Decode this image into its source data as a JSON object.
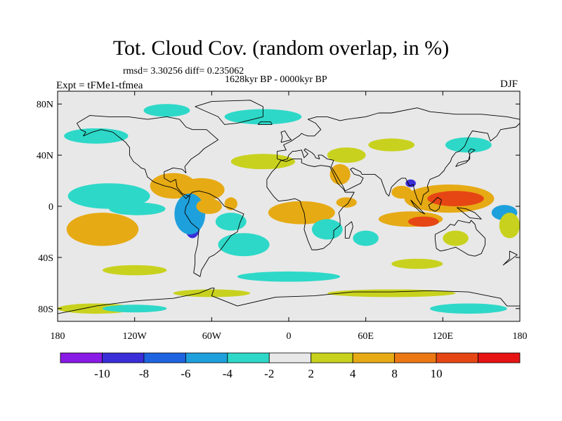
{
  "title": "Tot. Cloud Cov. (random overlap, in %)",
  "stats_text": "rmsd= 3.30256 diff= 0.235062",
  "period_text": "1628kyr BP - 0000kyr BP",
  "experiment_text": "Expt = tFMe1-tfmea",
  "season_text": "DJF",
  "lat_labels": [
    {
      "text": "80N",
      "lat": 80
    },
    {
      "text": "40N",
      "lat": 40
    },
    {
      "text": "0",
      "lat": 0
    },
    {
      "text": "40S",
      "lat": -40
    },
    {
      "text": "80S",
      "lat": -80
    }
  ],
  "lon_labels": [
    {
      "text": "180",
      "lon": -180
    },
    {
      "text": "120W",
      "lon": -120
    },
    {
      "text": "60W",
      "lon": -60
    },
    {
      "text": "0",
      "lon": 0
    },
    {
      "text": "60E",
      "lon": 60
    },
    {
      "text": "120E",
      "lon": 120
    },
    {
      "text": "180",
      "lon": 180
    }
  ],
  "colorbar": {
    "colors": [
      "#8a1ae6",
      "#3a2ed8",
      "#1e64e0",
      "#1ea0dc",
      "#2ed8c8",
      "#e8e8e8",
      "#c8d21e",
      "#e6aa14",
      "#ec7814",
      "#e64614",
      "#e61414"
    ],
    "labels": [
      {
        "text": "-10",
        "boundary": 1
      },
      {
        "text": "-8",
        "boundary": 2
      },
      {
        "text": "-6",
        "boundary": 3
      },
      {
        "text": "-4",
        "boundary": 4
      },
      {
        "text": "-2",
        "boundary": 5
      },
      {
        "text": "2",
        "boundary": 6
      },
      {
        "text": "4",
        "boundary": 7
      },
      {
        "text": "8",
        "boundary": 8
      },
      {
        "text": "10",
        "boundary": 9
      }
    ]
  },
  "anomaly_regions": [
    {
      "lon": -140,
      "lat": 8,
      "rlon": 22,
      "rlat": 7,
      "color": "#1e64e0"
    },
    {
      "lon": -140,
      "lat": 8,
      "rlon": 32,
      "rlat": 10,
      "color": "#2ed8c8"
    },
    {
      "lon": -150,
      "lat": -20,
      "rlon": 14,
      "rlat": 9,
      "color": "#e64614"
    },
    {
      "lon": -145,
      "lat": -18,
      "rlon": 28,
      "rlat": 13,
      "color": "#e6aa14"
    },
    {
      "lon": -90,
      "lat": 16,
      "rlon": 18,
      "rlat": 10,
      "color": "#e6aa14"
    },
    {
      "lon": -68,
      "lat": 13,
      "rlon": 18,
      "rlat": 9,
      "color": "#e6aa14"
    },
    {
      "lon": -75,
      "lat": -2,
      "rlon": 8,
      "rlat": 5,
      "color": "#3a2ed8"
    },
    {
      "lon": -75,
      "lat": -15,
      "rlon": 6,
      "rlat": 10,
      "color": "#3a2ed8"
    },
    {
      "lon": -77,
      "lat": -6,
      "rlon": 12,
      "rlat": 16,
      "color": "#1ea0dc"
    },
    {
      "lon": -118,
      "lat": -2,
      "rlon": 22,
      "rlat": 5,
      "color": "#2ed8c8"
    },
    {
      "lon": -62,
      "lat": 0,
      "rlon": 10,
      "rlat": 6,
      "color": "#e6aa14"
    },
    {
      "lon": -45,
      "lat": 2,
      "rlon": 5,
      "rlat": 5,
      "color": "#e6aa14"
    },
    {
      "lon": -40,
      "lat": -30,
      "rlon": 12,
      "rlat": 6,
      "color": "#1ea0dc"
    },
    {
      "lon": -35,
      "lat": -30,
      "rlon": 20,
      "rlat": 9,
      "color": "#2ed8c8"
    },
    {
      "lon": -45,
      "lat": -12,
      "rlon": 12,
      "rlat": 7,
      "color": "#2ed8c8"
    },
    {
      "lon": -20,
      "lat": 35,
      "rlon": 25,
      "rlat": 6,
      "color": "#c8d21e"
    },
    {
      "lon": 10,
      "lat": -5,
      "rlon": 16,
      "rlat": 5,
      "color": "#e64614"
    },
    {
      "lon": 10,
      "lat": -5,
      "rlon": 26,
      "rlat": 9,
      "color": "#e6aa14"
    },
    {
      "lon": 40,
      "lat": 25,
      "rlon": 8,
      "rlat": 8,
      "color": "#e6aa14"
    },
    {
      "lon": 45,
      "lat": 40,
      "rlon": 15,
      "rlat": 6,
      "color": "#c8d21e"
    },
    {
      "lon": 30,
      "lat": -18,
      "rlon": 12,
      "rlat": 8,
      "color": "#2ed8c8"
    },
    {
      "lon": 60,
      "lat": -25,
      "rlon": 10,
      "rlat": 6,
      "color": "#2ed8c8"
    },
    {
      "lon": 45,
      "lat": 3,
      "rlon": 8,
      "rlat": 4,
      "color": "#e6aa14"
    },
    {
      "lon": 88,
      "lat": 11,
      "rlon": 8,
      "rlat": 5,
      "color": "#e6aa14"
    },
    {
      "lon": 125,
      "lat": 6,
      "rlon": 35,
      "rlat": 11,
      "color": "#e6aa14"
    },
    {
      "lon": 130,
      "lat": 6,
      "rlon": 22,
      "rlat": 6,
      "color": "#e64614"
    },
    {
      "lon": 95,
      "lat": -10,
      "rlon": 25,
      "rlat": 6,
      "color": "#e6aa14"
    },
    {
      "lon": 105,
      "lat": -12,
      "rlon": 12,
      "rlat": 4,
      "color": "#e64614"
    },
    {
      "lon": 95,
      "lat": 18,
      "rlon": 4,
      "rlat": 3,
      "color": "#3a2ed8"
    },
    {
      "lon": 130,
      "lat": -25,
      "rlon": 10,
      "rlat": 6,
      "color": "#c8d21e"
    },
    {
      "lon": 168,
      "lat": -5,
      "rlon": 10,
      "rlat": 6,
      "color": "#1ea0dc"
    },
    {
      "lon": 172,
      "lat": -15,
      "rlon": 8,
      "rlat": 10,
      "color": "#c8d21e"
    },
    {
      "lon": 140,
      "lat": 48,
      "rlon": 18,
      "rlat": 6,
      "color": "#2ed8c8"
    },
    {
      "lon": 80,
      "lat": 48,
      "rlon": 18,
      "rlat": 5,
      "color": "#c8d21e"
    },
    {
      "lon": -150,
      "lat": 55,
      "rlon": 25,
      "rlat": 6,
      "color": "#2ed8c8"
    },
    {
      "lon": -20,
      "lat": 70,
      "rlon": 30,
      "rlat": 6,
      "color": "#2ed8c8"
    },
    {
      "lon": -95,
      "lat": 75,
      "rlon": 18,
      "rlat": 5,
      "color": "#2ed8c8"
    },
    {
      "lon": -120,
      "lat": -50,
      "rlon": 25,
      "rlat": 4,
      "color": "#c8d21e"
    },
    {
      "lon": 100,
      "lat": -45,
      "rlon": 20,
      "rlat": 4,
      "color": "#c8d21e"
    },
    {
      "lon": 0,
      "lat": -55,
      "rlon": 40,
      "rlat": 4,
      "color": "#2ed8c8"
    },
    {
      "lon": -60,
      "lat": -68,
      "rlon": 30,
      "rlat": 3,
      "color": "#c8d21e"
    },
    {
      "lon": 80,
      "lat": -68,
      "rlon": 50,
      "rlat": 3,
      "color": "#c8d21e"
    },
    {
      "lon": -150,
      "lat": -80,
      "rlon": 30,
      "rlat": 4,
      "color": "#c8d21e"
    },
    {
      "lon": 140,
      "lat": -80,
      "rlon": 30,
      "rlat": 4,
      "color": "#2ed8c8"
    },
    {
      "lon": -120,
      "lat": -80,
      "rlon": 25,
      "rlat": 3,
      "color": "#2ed8c8"
    }
  ],
  "coastlines": [
    [
      [
        -165,
        65
      ],
      [
        -155,
        71
      ],
      [
        -140,
        70
      ],
      [
        -125,
        70
      ],
      [
        -110,
        68
      ],
      [
        -95,
        70
      ],
      [
        -85,
        68
      ],
      [
        -80,
        62
      ],
      [
        -75,
        60
      ],
      [
        -64,
        60
      ],
      [
        -55,
        52
      ],
      [
        -66,
        45
      ],
      [
        -70,
        41
      ],
      [
        -76,
        37
      ],
      [
        -81,
        31
      ],
      [
        -80,
        26
      ],
      [
        -83,
        29
      ],
      [
        -90,
        30
      ],
      [
        -97,
        27
      ],
      [
        -97,
        22
      ],
      [
        -92,
        19
      ],
      [
        -88,
        21
      ],
      [
        -87,
        15
      ],
      [
        -83,
        10
      ],
      [
        -78,
        8
      ],
      [
        -80,
        6
      ],
      [
        -87,
        13
      ],
      [
        -92,
        15
      ],
      [
        -97,
        16
      ],
      [
        -105,
        19
      ],
      [
        -110,
        23
      ],
      [
        -112,
        29
      ],
      [
        -115,
        30
      ],
      [
        -117,
        32
      ],
      [
        -121,
        35
      ],
      [
        -124,
        40
      ],
      [
        -124,
        46
      ],
      [
        -127,
        50
      ],
      [
        -132,
        54
      ],
      [
        -137,
        58
      ],
      [
        -146,
        60
      ],
      [
        -153,
        58
      ],
      [
        -160,
        55
      ],
      [
        -158,
        58
      ],
      [
        -162,
        60
      ],
      [
        -165,
        65
      ]
    ],
    [
      [
        -78,
        8
      ],
      [
        -75,
        11
      ],
      [
        -70,
        12
      ],
      [
        -62,
        10
      ],
      [
        -55,
        6
      ],
      [
        -50,
        0
      ],
      [
        -44,
        -2
      ],
      [
        -35,
        -6
      ],
      [
        -38,
        -13
      ],
      [
        -40,
        -20
      ],
      [
        -45,
        -23
      ],
      [
        -48,
        -27
      ],
      [
        -53,
        -34
      ],
      [
        -58,
        -38
      ],
      [
        -62,
        -40
      ],
      [
        -65,
        -45
      ],
      [
        -68,
        -50
      ],
      [
        -69,
        -55
      ],
      [
        -74,
        -52
      ],
      [
        -73,
        -45
      ],
      [
        -73,
        -38
      ],
      [
        -71,
        -30
      ],
      [
        -70,
        -18
      ],
      [
        -76,
        -13
      ],
      [
        -81,
        -5
      ],
      [
        -80,
        0
      ],
      [
        -78,
        3
      ],
      [
        -77,
        8
      ],
      [
        -78,
        8
      ]
    ],
    [
      [
        -73,
        78
      ],
      [
        -60,
        82
      ],
      [
        -30,
        83
      ],
      [
        -20,
        78
      ],
      [
        -20,
        70
      ],
      [
        -40,
        65
      ],
      [
        -50,
        64
      ],
      [
        -55,
        70
      ],
      [
        -73,
        78
      ]
    ],
    [
      [
        -9,
        37
      ],
      [
        -9,
        43
      ],
      [
        -2,
        44
      ],
      [
        -4,
        48
      ],
      [
        2,
        51
      ],
      [
        5,
        53
      ],
      [
        8,
        55
      ],
      [
        10,
        57
      ],
      [
        12,
        56
      ],
      [
        15,
        55
      ],
      [
        20,
        55
      ],
      [
        25,
        60
      ],
      [
        21,
        65
      ],
      [
        15,
        68
      ],
      [
        22,
        70
      ],
      [
        30,
        70
      ],
      [
        40,
        67
      ],
      [
        45,
        68
      ],
      [
        60,
        70
      ],
      [
        70,
        73
      ],
      [
        80,
        73
      ],
      [
        100,
        77
      ],
      [
        110,
        74
      ],
      [
        130,
        72
      ],
      [
        150,
        72
      ],
      [
        170,
        70
      ],
      [
        180,
        68
      ],
      [
        180,
        65
      ],
      [
        177,
        62
      ],
      [
        165,
        60
      ],
      [
        162,
        55
      ],
      [
        157,
        51
      ],
      [
        155,
        57
      ],
      [
        143,
        59
      ],
      [
        140,
        54
      ],
      [
        137,
        47
      ],
      [
        133,
        43
      ],
      [
        130,
        42
      ],
      [
        127,
        38
      ],
      [
        126,
        35
      ],
      [
        122,
        30
      ],
      [
        121,
        28
      ],
      [
        117,
        24
      ],
      [
        110,
        21
      ],
      [
        108,
        16
      ],
      [
        109,
        12
      ],
      [
        105,
        9
      ],
      [
        103,
        1
      ],
      [
        100,
        6
      ],
      [
        98,
        12
      ],
      [
        97,
        17
      ],
      [
        94,
        16
      ],
      [
        91,
        22
      ],
      [
        88,
        22
      ],
      [
        85,
        20
      ],
      [
        80,
        15
      ],
      [
        78,
        8
      ],
      [
        76,
        10
      ],
      [
        73,
        18
      ],
      [
        72,
        21
      ],
      [
        67,
        25
      ],
      [
        62,
        25
      ],
      [
        57,
        25
      ],
      [
        56,
        27
      ],
      [
        50,
        30
      ],
      [
        48,
        29
      ],
      [
        51,
        25
      ],
      [
        55,
        24
      ],
      [
        58,
        22
      ],
      [
        56,
        18
      ],
      [
        52,
        16
      ],
      [
        44,
        12
      ],
      [
        42,
        16
      ],
      [
        39,
        21
      ],
      [
        35,
        28
      ],
      [
        33,
        31
      ],
      [
        35,
        36
      ],
      [
        30,
        37
      ],
      [
        26,
        40
      ],
      [
        23,
        40
      ],
      [
        24,
        37
      ],
      [
        21,
        38
      ],
      [
        20,
        40
      ],
      [
        18,
        42
      ],
      [
        13,
        45
      ],
      [
        12,
        44
      ],
      [
        15,
        41
      ],
      [
        12,
        38
      ],
      [
        10,
        44
      ],
      [
        5,
        43
      ],
      [
        3,
        43
      ],
      [
        0,
        40
      ],
      [
        -1,
        37
      ],
      [
        -5,
        36
      ],
      [
        -9,
        37
      ]
    ],
    [
      [
        -17,
        21
      ],
      [
        -17,
        15
      ],
      [
        -12,
        8
      ],
      [
        -8,
        4
      ],
      [
        0,
        5
      ],
      [
        5,
        6
      ],
      [
        9,
        4
      ],
      [
        10,
        0
      ],
      [
        12,
        -5
      ],
      [
        13,
        -12
      ],
      [
        12,
        -18
      ],
      [
        15,
        -27
      ],
      [
        18,
        -34
      ],
      [
        22,
        -34
      ],
      [
        27,
        -33
      ],
      [
        32,
        -29
      ],
      [
        35,
        -24
      ],
      [
        35,
        -19
      ],
      [
        40,
        -15
      ],
      [
        40,
        -10
      ],
      [
        39,
        -5
      ],
      [
        42,
        -1
      ],
      [
        46,
        2
      ],
      [
        51,
        11
      ],
      [
        44,
        11
      ],
      [
        43,
        13
      ],
      [
        38,
        18
      ],
      [
        34,
        27
      ],
      [
        32,
        31
      ],
      [
        25,
        32
      ],
      [
        20,
        31
      ],
      [
        15,
        32
      ],
      [
        10,
        34
      ],
      [
        10,
        37
      ],
      [
        3,
        37
      ],
      [
        -2,
        35
      ],
      [
        -6,
        36
      ],
      [
        -10,
        30
      ],
      [
        -13,
        27
      ],
      [
        -17,
        21
      ]
    ],
    [
      [
        114,
        -22
      ],
      [
        114,
        -26
      ],
      [
        115,
        -33
      ],
      [
        118,
        -35
      ],
      [
        123,
        -34
      ],
      [
        130,
        -32
      ],
      [
        135,
        -35
      ],
      [
        140,
        -38
      ],
      [
        145,
        -39
      ],
      [
        150,
        -37
      ],
      [
        153,
        -30
      ],
      [
        153,
        -25
      ],
      [
        150,
        -22
      ],
      [
        146,
        -18
      ],
      [
        145,
        -14
      ],
      [
        142,
        -11
      ],
      [
        141,
        -13
      ],
      [
        136,
        -12
      ],
      [
        132,
        -11
      ],
      [
        129,
        -15
      ],
      [
        126,
        -14
      ],
      [
        122,
        -18
      ],
      [
        118,
        -20
      ],
      [
        114,
        -22
      ]
    ],
    [
      [
        44,
        -25
      ],
      [
        47,
        -25
      ],
      [
        50,
        -16
      ],
      [
        49,
        -12
      ],
      [
        44,
        -16
      ],
      [
        44,
        -25
      ]
    ],
    [
      [
        130,
        31
      ],
      [
        132,
        34
      ],
      [
        136,
        35
      ],
      [
        140,
        36
      ],
      [
        141,
        40
      ],
      [
        140,
        43
      ],
      [
        142,
        45
      ],
      [
        145,
        44
      ],
      [
        141,
        41
      ],
      [
        141,
        37
      ],
      [
        138,
        34
      ],
      [
        135,
        33
      ],
      [
        130,
        31
      ]
    ],
    [
      [
        -6,
        50
      ],
      [
        -5,
        54
      ],
      [
        -6,
        58
      ],
      [
        -3,
        59
      ],
      [
        0,
        54
      ],
      [
        2,
        52
      ],
      [
        -6,
        50
      ]
    ],
    [
      [
        95,
        5
      ],
      [
        98,
        2
      ],
      [
        104,
        -4
      ],
      [
        106,
        -6
      ],
      [
        102,
        -4
      ],
      [
        98,
        0
      ],
      [
        95,
        5
      ]
    ],
    [
      [
        109,
        1
      ],
      [
        110,
        -2
      ],
      [
        114,
        -4
      ],
      [
        117,
        -2
      ],
      [
        119,
        5
      ],
      [
        116,
        7
      ],
      [
        112,
        3
      ],
      [
        109,
        1
      ]
    ],
    [
      [
        131,
        -1
      ],
      [
        138,
        -2
      ],
      [
        145,
        -5
      ],
      [
        150,
        -10
      ],
      [
        141,
        -9
      ],
      [
        136,
        -5
      ],
      [
        131,
        -1
      ]
    ],
    [
      [
        -180,
        -84
      ],
      [
        -150,
        -78
      ],
      [
        -120,
        -74
      ],
      [
        -90,
        -72
      ],
      [
        -70,
        -68
      ],
      [
        -60,
        -64
      ],
      [
        -58,
        -64
      ],
      [
        -60,
        -70
      ],
      [
        -40,
        -78
      ],
      [
        -10,
        -71
      ],
      [
        20,
        -70
      ],
      [
        50,
        -67
      ],
      [
        80,
        -67
      ],
      [
        110,
        -66
      ],
      [
        140,
        -67
      ],
      [
        165,
        -72
      ],
      [
        170,
        -78
      ],
      [
        180,
        -78
      ]
    ],
    [
      [
        -24,
        64
      ],
      [
        -13,
        64
      ],
      [
        -14,
        66
      ],
      [
        -22,
        66
      ],
      [
        -24,
        64
      ]
    ],
    [
      [
        172,
        -35
      ],
      [
        178,
        -38
      ],
      [
        174,
        -41
      ],
      [
        167,
        -46
      ],
      [
        172,
        -41
      ],
      [
        172,
        -35
      ]
    ]
  ]
}
